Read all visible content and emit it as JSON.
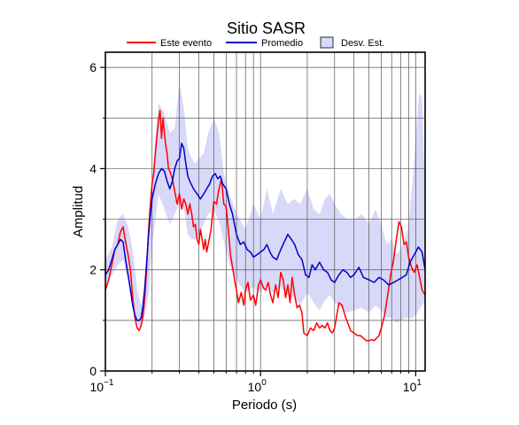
{
  "chart_data": {
    "type": "line",
    "title": "Sitio SASR",
    "xlabel": "Periodo (s)",
    "ylabel": "Amplitud",
    "x_scale": "log",
    "xlim": [
      0.1,
      11.5
    ],
    "ylim": [
      0,
      6.3
    ],
    "grid": true,
    "legend_position": "top",
    "x_ticks": [
      {
        "value": 0.1,
        "base": "10",
        "exp": "−1"
      },
      {
        "value": 1,
        "base": "10",
        "exp": "0"
      },
      {
        "value": 10,
        "base": "10",
        "exp": "1"
      }
    ],
    "y_ticks": [
      {
        "value": 0,
        "label": "0"
      },
      {
        "value": 2,
        "label": "2"
      },
      {
        "value": 4,
        "label": "4"
      },
      {
        "value": 6,
        "label": "6"
      }
    ],
    "legend": [
      {
        "label": "Este evento",
        "kind": "line",
        "color": "#ff0000"
      },
      {
        "label": "Promedio",
        "kind": "line",
        "color": "#0000cc"
      },
      {
        "label": "Desv. Est.",
        "kind": "area",
        "color": "#d8d8f8"
      }
    ],
    "band": {
      "name": "Desv. Est.",
      "color": "#d8d8f8",
      "x": [
        0.1,
        0.11,
        0.12,
        0.13,
        0.14,
        0.15,
        0.16,
        0.17,
        0.18,
        0.19,
        0.2,
        0.21,
        0.22,
        0.24,
        0.26,
        0.28,
        0.3,
        0.32,
        0.34,
        0.36,
        0.38,
        0.4,
        0.43,
        0.46,
        0.5,
        0.54,
        0.58,
        0.63,
        0.7,
        0.8,
        0.9,
        1.0,
        1.1,
        1.2,
        1.35,
        1.5,
        1.65,
        1.8,
        2.0,
        2.2,
        2.4,
        2.6,
        2.8,
        3.0,
        3.3,
        3.6,
        4.0,
        4.5,
        5.0,
        5.5,
        6.0,
        6.5,
        7.0,
        7.5,
        8.0,
        8.5,
        9.0,
        9.5,
        10.0,
        10.5,
        11.0,
        11.5
      ],
      "upper": [
        2.2,
        2.45,
        3.0,
        3.1,
        2.85,
        2.4,
        1.6,
        1.3,
        1.65,
        2.4,
        3.8,
        4.6,
        5.3,
        5.1,
        4.7,
        4.8,
        5.7,
        5.2,
        4.4,
        4.2,
        4.1,
        4.2,
        4.3,
        4.7,
        5.0,
        4.7,
        3.9,
        3.5,
        3.1,
        2.8,
        3.3,
        3.0,
        3.6,
        3.1,
        3.6,
        3.3,
        3.4,
        3.3,
        3.6,
        3.2,
        3.1,
        3.4,
        3.5,
        3.3,
        3.1,
        3.0,
        3.0,
        3.1,
        2.9,
        3.2,
        2.9,
        2.5,
        2.6,
        2.3,
        2.4,
        2.6,
        2.9,
        3.7,
        4.6,
        5.5,
        5.4,
        3.5
      ],
      "lower": [
        1.7,
        1.9,
        2.1,
        2.2,
        1.8,
        1.3,
        0.95,
        0.85,
        1.15,
        1.5,
        2.5,
        3.0,
        3.5,
        3.2,
        2.9,
        3.1,
        3.3,
        3.2,
        2.7,
        2.6,
        2.6,
        2.7,
        2.9,
        3.1,
        3.2,
        2.95,
        2.55,
        2.1,
        1.8,
        1.55,
        1.65,
        1.55,
        1.7,
        1.55,
        1.65,
        1.5,
        1.45,
        1.3,
        1.55,
        1.35,
        1.2,
        1.4,
        1.5,
        1.35,
        1.25,
        1.15,
        1.2,
        1.25,
        1.15,
        1.3,
        1.2,
        1.05,
        1.05,
        0.95,
        1.0,
        1.05,
        1.05,
        1.05,
        1.1,
        1.2,
        1.3,
        1.4
      ]
    },
    "series": [
      {
        "name": "Este evento",
        "color": "#ff0000",
        "x": [
          0.1,
          0.105,
          0.11,
          0.115,
          0.12,
          0.125,
          0.13,
          0.135,
          0.14,
          0.145,
          0.15,
          0.155,
          0.16,
          0.165,
          0.17,
          0.175,
          0.18,
          0.185,
          0.19,
          0.195,
          0.2,
          0.205,
          0.21,
          0.215,
          0.22,
          0.225,
          0.23,
          0.235,
          0.24,
          0.245,
          0.25,
          0.255,
          0.26,
          0.27,
          0.28,
          0.29,
          0.3,
          0.31,
          0.32,
          0.33,
          0.34,
          0.35,
          0.36,
          0.37,
          0.38,
          0.39,
          0.4,
          0.41,
          0.42,
          0.43,
          0.44,
          0.45,
          0.46,
          0.48,
          0.5,
          0.52,
          0.54,
          0.56,
          0.58,
          0.6,
          0.62,
          0.64,
          0.66,
          0.68,
          0.7,
          0.72,
          0.75,
          0.78,
          0.8,
          0.83,
          0.86,
          0.9,
          0.93,
          0.97,
          1.0,
          1.04,
          1.08,
          1.12,
          1.16,
          1.2,
          1.25,
          1.3,
          1.35,
          1.4,
          1.45,
          1.5,
          1.55,
          1.6,
          1.66,
          1.72,
          1.78,
          1.85,
          1.9,
          2.0,
          2.1,
          2.2,
          2.3,
          2.4,
          2.5,
          2.6,
          2.7,
          2.8,
          2.9,
          3.0,
          3.1,
          3.2,
          3.35,
          3.5,
          3.65,
          3.8,
          4.0,
          4.2,
          4.4,
          4.6,
          4.8,
          5.0,
          5.2,
          5.4,
          5.6,
          5.8,
          6.0,
          6.3,
          6.6,
          6.9,
          7.2,
          7.5,
          7.8,
          8.1,
          8.4,
          8.7,
          9.0,
          9.4,
          9.8,
          10.2,
          10.6,
          11.0,
          11.5
        ],
        "y": [
          1.6,
          1.8,
          2.1,
          2.4,
          2.5,
          2.75,
          2.85,
          2.55,
          2.3,
          2.0,
          1.45,
          1.05,
          0.85,
          0.8,
          0.9,
          1.1,
          1.5,
          2.1,
          2.8,
          3.3,
          3.7,
          3.9,
          4.3,
          4.65,
          4.95,
          5.15,
          4.6,
          5.0,
          4.7,
          4.45,
          4.3,
          4.0,
          3.95,
          3.8,
          3.55,
          3.3,
          3.5,
          3.2,
          3.4,
          3.3,
          3.1,
          3.3,
          3.1,
          2.85,
          2.9,
          2.6,
          2.5,
          2.8,
          2.6,
          2.4,
          2.6,
          2.35,
          2.5,
          2.8,
          3.35,
          3.3,
          3.6,
          3.8,
          3.3,
          3.25,
          2.8,
          2.3,
          2.05,
          1.8,
          1.6,
          1.35,
          1.55,
          1.3,
          1.6,
          1.75,
          1.4,
          1.5,
          1.3,
          1.7,
          1.8,
          1.65,
          1.6,
          1.75,
          1.5,
          1.35,
          1.7,
          1.45,
          1.95,
          1.8,
          1.45,
          1.7,
          1.35,
          1.85,
          1.5,
          1.25,
          1.3,
          1.15,
          0.75,
          0.7,
          0.85,
          0.8,
          0.95,
          0.85,
          0.9,
          0.85,
          0.95,
          0.8,
          0.75,
          0.85,
          1.1,
          1.35,
          1.3,
          1.1,
          0.95,
          0.8,
          0.75,
          0.7,
          0.7,
          0.65,
          0.6,
          0.6,
          0.62,
          0.6,
          0.65,
          0.7,
          0.85,
          1.1,
          1.5,
          1.9,
          2.2,
          2.6,
          2.95,
          2.85,
          2.5,
          2.55,
          2.25,
          2.05,
          1.95,
          2.1,
          1.85,
          1.6,
          1.5
        ]
      },
      {
        "name": "Promedio",
        "color": "#0000cc",
        "x": [
          0.1,
          0.105,
          0.11,
          0.115,
          0.12,
          0.125,
          0.13,
          0.135,
          0.14,
          0.145,
          0.15,
          0.155,
          0.16,
          0.165,
          0.17,
          0.175,
          0.18,
          0.185,
          0.19,
          0.195,
          0.2,
          0.21,
          0.22,
          0.23,
          0.24,
          0.25,
          0.26,
          0.27,
          0.28,
          0.29,
          0.3,
          0.31,
          0.32,
          0.33,
          0.34,
          0.35,
          0.37,
          0.39,
          0.41,
          0.43,
          0.45,
          0.47,
          0.49,
          0.51,
          0.53,
          0.55,
          0.57,
          0.6,
          0.63,
          0.66,
          0.7,
          0.74,
          0.78,
          0.82,
          0.86,
          0.9,
          0.95,
          1.0,
          1.05,
          1.1,
          1.15,
          1.2,
          1.27,
          1.35,
          1.42,
          1.5,
          1.58,
          1.66,
          1.75,
          1.85,
          1.95,
          2.05,
          2.15,
          2.25,
          2.4,
          2.55,
          2.7,
          2.85,
          3.0,
          3.2,
          3.4,
          3.6,
          3.8,
          4.0,
          4.3,
          4.6,
          5.0,
          5.4,
          5.8,
          6.2,
          6.7,
          7.2,
          7.7,
          8.2,
          8.7,
          9.2,
          9.8,
          10.4,
          11.0,
          11.5
        ],
        "y": [
          1.9,
          2.0,
          2.2,
          2.4,
          2.5,
          2.6,
          2.55,
          2.2,
          1.9,
          1.6,
          1.3,
          1.1,
          1.0,
          1.0,
          1.05,
          1.3,
          1.7,
          2.2,
          2.7,
          3.1,
          3.4,
          3.7,
          3.9,
          4.0,
          3.95,
          3.75,
          3.6,
          3.75,
          4.0,
          4.15,
          4.2,
          4.5,
          4.4,
          4.1,
          3.85,
          3.75,
          3.6,
          3.5,
          3.4,
          3.5,
          3.6,
          3.7,
          3.85,
          3.9,
          3.8,
          3.85,
          3.7,
          3.6,
          3.3,
          3.1,
          2.7,
          2.5,
          2.55,
          2.4,
          2.35,
          2.25,
          2.3,
          2.35,
          2.4,
          2.5,
          2.35,
          2.25,
          2.2,
          2.4,
          2.55,
          2.7,
          2.6,
          2.5,
          2.3,
          2.2,
          1.9,
          1.85,
          2.1,
          2.0,
          2.15,
          2.0,
          1.95,
          1.8,
          1.75,
          1.9,
          2.0,
          1.95,
          1.85,
          1.9,
          2.05,
          1.85,
          1.8,
          1.75,
          1.85,
          1.8,
          1.7,
          1.75,
          1.8,
          1.85,
          1.9,
          2.15,
          2.3,
          2.45,
          2.35,
          2.0
        ]
      }
    ]
  }
}
